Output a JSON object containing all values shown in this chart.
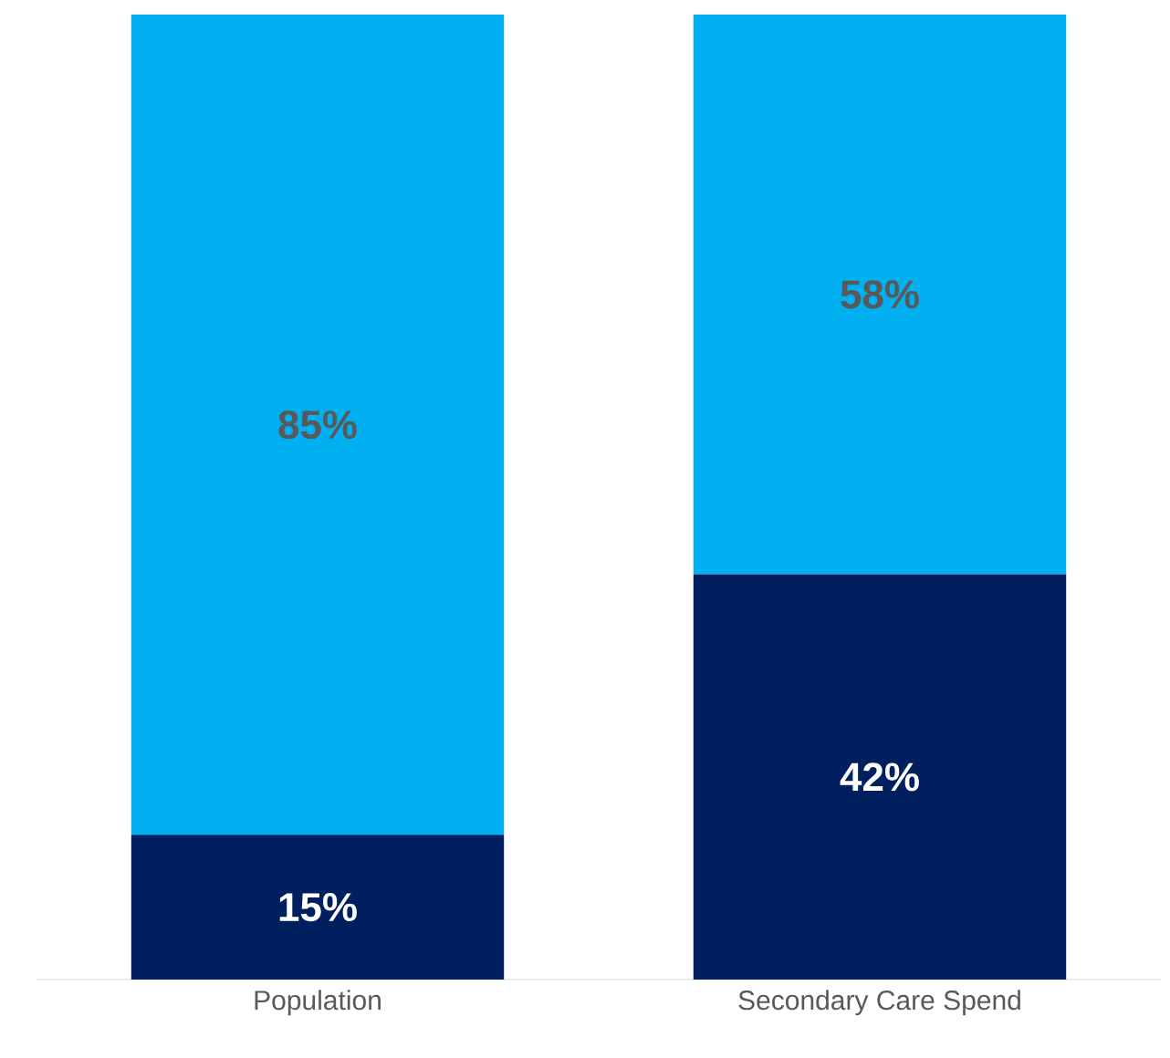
{
  "chart_data": {
    "type": "bar",
    "stacked": true,
    "categories": [
      "Population",
      "Secondary Care Spend"
    ],
    "series": [
      {
        "color": "#001f5f",
        "values": [
          15,
          42
        ],
        "value_labels": [
          "15%",
          "42%"
        ]
      },
      {
        "color": "#00b0f0",
        "values": [
          85,
          58
        ],
        "value_labels": [
          "85%",
          "58%"
        ]
      }
    ],
    "tick_labels": "x"
  }
}
